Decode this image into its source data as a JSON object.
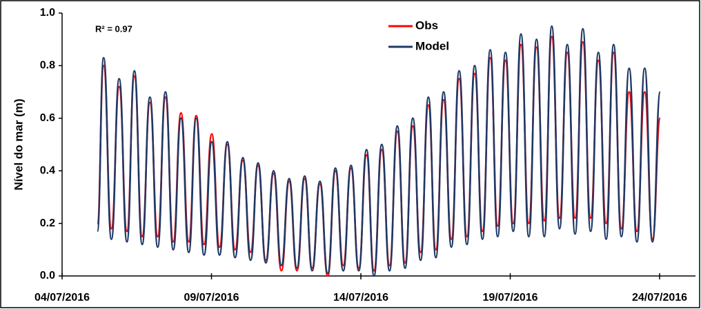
{
  "chart_data": {
    "type": "line",
    "ylabel": "Nível do mar (m)",
    "annotation": "R² = 0.97",
    "xlim": [
      0,
      21.2
    ],
    "ylim": [
      0,
      1
    ],
    "xticks": [
      {
        "value": 0,
        "label": "04/07/2016"
      },
      {
        "value": 5,
        "label": "09/07/2016"
      },
      {
        "value": 10,
        "label": "14/07/2016"
      },
      {
        "value": 15,
        "label": "19/07/2016"
      },
      {
        "value": 20,
        "label": "24/07/2016"
      }
    ],
    "yticks": [
      {
        "value": 0,
        "label": "0.0"
      },
      {
        "value": 0.2,
        "label": "0.2"
      },
      {
        "value": 0.4,
        "label": "0.4"
      },
      {
        "value": 0.6,
        "label": "0.6"
      },
      {
        "value": 0.8,
        "label": "0.8"
      },
      {
        "value": 1,
        "label": "1.0"
      }
    ],
    "legend": "top",
    "x": [
      1.18,
      1.39,
      1.65,
      1.91,
      2.17,
      2.42,
      2.68,
      2.94,
      3.2,
      3.46,
      3.72,
      3.98,
      4.24,
      4.49,
      4.75,
      5.01,
      5.27,
      5.53,
      5.79,
      6.05,
      6.31,
      6.56,
      6.82,
      7.08,
      7.34,
      7.6,
      7.86,
      8.12,
      8.37,
      8.63,
      8.89,
      9.15,
      9.41,
      9.67,
      9.93,
      10.19,
      10.44,
      10.7,
      10.96,
      11.22,
      11.48,
      11.74,
      12.0,
      12.26,
      12.51,
      12.77,
      13.03,
      13.29,
      13.55,
      13.81,
      14.07,
      14.33,
      14.58,
      14.84,
      15.1,
      15.36,
      15.62,
      15.88,
      16.14,
      16.39,
      16.65,
      16.91,
      17.17,
      17.43,
      17.69,
      17.95,
      18.21,
      18.46,
      18.72,
      18.98,
      19.24,
      19.5,
      19.76,
      20.02
    ],
    "series": [
      {
        "name": "Obs",
        "color": "#ff0000",
        "values": [
          0.2,
          0.8,
          0.18,
          0.72,
          0.17,
          0.76,
          0.15,
          0.66,
          0.15,
          0.68,
          0.13,
          0.62,
          0.13,
          0.61,
          0.12,
          0.54,
          0.11,
          0.5,
          0.1,
          0.44,
          0.09,
          0.42,
          0.06,
          0.39,
          0.02,
          0.36,
          0.02,
          0.37,
          0.03,
          0.35,
          0.0,
          0.4,
          0.04,
          0.41,
          0.03,
          0.46,
          0.02,
          0.48,
          0.04,
          0.55,
          0.05,
          0.57,
          0.09,
          0.65,
          0.1,
          0.67,
          0.14,
          0.75,
          0.15,
          0.77,
          0.17,
          0.83,
          0.19,
          0.82,
          0.2,
          0.88,
          0.2,
          0.87,
          0.21,
          0.91,
          0.22,
          0.85,
          0.22,
          0.89,
          0.22,
          0.82,
          0.2,
          0.85,
          0.18,
          0.7,
          0.17,
          0.7,
          0.14,
          0.6
        ]
      },
      {
        "name": "Model",
        "color": "#1f3864",
        "values": [
          0.17,
          0.83,
          0.14,
          0.75,
          0.13,
          0.78,
          0.12,
          0.68,
          0.11,
          0.7,
          0.1,
          0.6,
          0.09,
          0.6,
          0.08,
          0.51,
          0.08,
          0.51,
          0.07,
          0.45,
          0.06,
          0.43,
          0.05,
          0.4,
          0.04,
          0.37,
          0.03,
          0.38,
          0.02,
          0.36,
          0.01,
          0.41,
          0.02,
          0.42,
          0.02,
          0.48,
          0.0,
          0.5,
          0.02,
          0.57,
          0.03,
          0.6,
          0.06,
          0.68,
          0.07,
          0.7,
          0.11,
          0.78,
          0.12,
          0.8,
          0.14,
          0.86,
          0.15,
          0.85,
          0.17,
          0.92,
          0.15,
          0.9,
          0.15,
          0.95,
          0.18,
          0.88,
          0.16,
          0.94,
          0.17,
          0.85,
          0.14,
          0.88,
          0.15,
          0.79,
          0.13,
          0.79,
          0.13,
          0.7
        ]
      }
    ]
  }
}
